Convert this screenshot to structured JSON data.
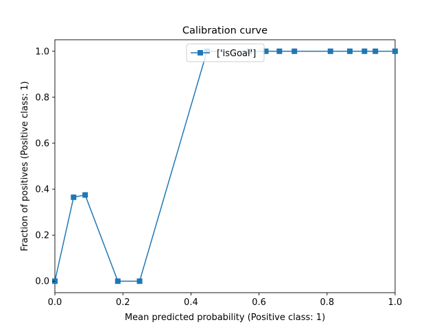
{
  "chart_data": {
    "type": "line",
    "title": "Calibration curve",
    "xlabel": "Mean predicted probability (Positive class: 1)",
    "ylabel": "Fraction of positives (Positive class: 1)",
    "xlim": [
      0.0,
      1.0
    ],
    "ylim": [
      -0.05,
      1.05
    ],
    "xticks": [
      0.0,
      0.2,
      0.4,
      0.6,
      0.8,
      1.0
    ],
    "xtick_labels": [
      "0.0",
      "0.2",
      "0.4",
      "0.6",
      "0.8",
      "1.0"
    ],
    "yticks": [
      0.0,
      0.2,
      0.4,
      0.6,
      0.8,
      1.0
    ],
    "ytick_labels": [
      "0.0",
      "0.2",
      "0.4",
      "0.6",
      "0.8",
      "1.0"
    ],
    "grid": false,
    "legend_position": "top-center",
    "series": [
      {
        "name": "['isGoal']",
        "color": "#1f77b4",
        "marker": "square",
        "x": [
          0.0,
          0.055,
          0.089,
          0.185,
          0.249,
          0.447,
          0.572,
          0.62,
          0.66,
          0.704,
          0.81,
          0.867,
          0.91,
          0.942,
          1.0
        ],
        "y": [
          0.0,
          0.365,
          0.375,
          0.0,
          0.0,
          1.0,
          1.0,
          1.0,
          1.0,
          1.0,
          1.0,
          1.0,
          1.0,
          1.0,
          1.0
        ]
      }
    ]
  }
}
